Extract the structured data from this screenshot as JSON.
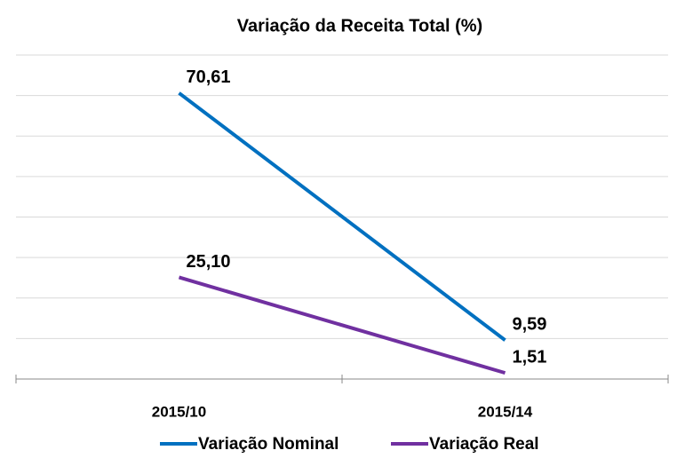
{
  "chart_data": {
    "type": "line",
    "title": "Variação da Receita Total (%)",
    "categories": [
      "2015/10",
      "2015/14"
    ],
    "series": [
      {
        "name": "Variação Nominal",
        "color": "#0070c0",
        "values": [
          70.61,
          9.59
        ],
        "value_labels": [
          "70,61",
          "9,59"
        ]
      },
      {
        "name": "Variação Real",
        "color": "#7030a0",
        "values": [
          25.1,
          1.51
        ],
        "value_labels": [
          "25,10",
          "1,51"
        ]
      }
    ],
    "ylim": [
      0,
      80
    ],
    "yticks": [
      0,
      10,
      20,
      30,
      40,
      50,
      60,
      70,
      80
    ],
    "grid": true,
    "legend": "bottom"
  }
}
